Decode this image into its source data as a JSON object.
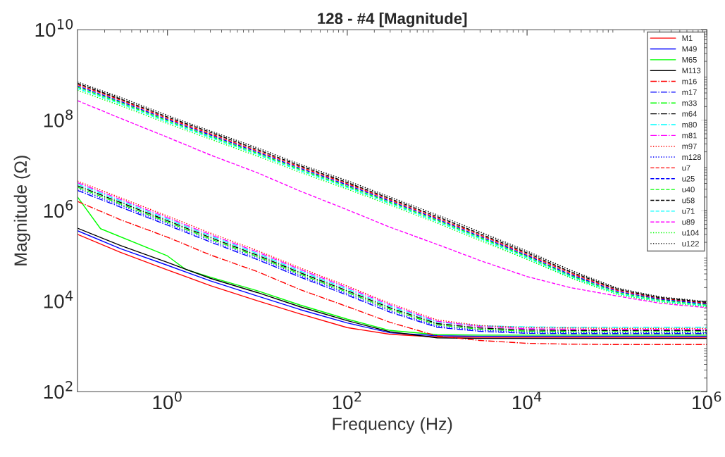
{
  "chart_data": {
    "type": "line",
    "title": "128 - #4 [Magnitude]",
    "xlabel": "Frequency (Hz)",
    "ylabel": "Magnitude (Ω)",
    "log": "xy",
    "grid": false,
    "legend": "top right",
    "xlim": [
      0.1,
      1000000
    ],
    "ylim": [
      100,
      10000000000
    ],
    "xticks": [
      {
        "value": 1,
        "label": "10$^{0}$"
      },
      {
        "value": 100,
        "label": "10$^{2}$"
      },
      {
        "value": 10000,
        "label": "10$^{4}$"
      },
      {
        "value": 1000000,
        "label": "10$^{6}$"
      }
    ],
    "yticks": [
      {
        "value": 100,
        "label": "10$^{2}$"
      },
      {
        "value": 10000,
        "label": "10$^{4}$"
      },
      {
        "value": 1000000,
        "label": "10$^{6}$"
      },
      {
        "value": 100000000,
        "label": "10$^{8}$"
      },
      {
        "value": 10000000000,
        "label": "10$^{10}$"
      }
    ],
    "x": [
      0.1,
      0.3,
      1,
      3,
      10,
      30,
      100,
      300,
      1000,
      3000,
      10000,
      30000,
      100000,
      300000,
      1000000
    ],
    "series": [
      {
        "name": "M1",
        "color": "#ff0000",
        "line_style": "solid",
        "values": [
          300000.0,
          120000.0,
          49000.0,
          22000.0,
          10200.0,
          5200.0,
          2600.0,
          1850.0,
          1620.0,
          1580.0,
          1580.0,
          1580.0,
          1580.0,
          1580.0,
          1580.0
        ]
      },
      {
        "name": "M49",
        "color": "#0000ff",
        "line_style": "solid",
        "values": [
          360000.0,
          145000.0,
          62000.0,
          28000.0,
          13000.0,
          6500.0,
          3300.0,
          2000.0,
          1720.0,
          1680.0,
          1680.0,
          1680.0,
          1680.0,
          1680.0,
          1680.0
        ]
      },
      {
        "name": "M65",
        "color": "#00ff00",
        "line_style": "solid",
        "x": [
          0.1,
          0.18,
          1,
          1.6,
          3,
          10,
          30,
          100,
          300,
          1000,
          3000,
          10000,
          30000,
          100000,
          300000,
          1000000
        ],
        "values": [
          2000000.0,
          400000.0,
          100000.0,
          50000.0,
          34000.0,
          17000.0,
          8200.0,
          4000.0,
          2250.0,
          1820.0,
          1780.0,
          1780.0,
          1780.0,
          1780.0,
          1780.0,
          1780.0
        ]
      },
      {
        "name": "M113",
        "color": "#000000",
        "line_style": "solid",
        "values": [
          410000.0,
          170000.0,
          72000.0,
          32000.0,
          15500.0,
          7500.0,
          3700.0,
          2100.0,
          1550.0,
          1500.0,
          1500.0,
          1500.0,
          1500.0,
          1500.0,
          1500.0
        ]
      },
      {
        "name": "m16",
        "color": "#ff0000",
        "line_style": "dashdot",
        "values": [
          1600000.0,
          630000.0,
          260000.0,
          105000.0,
          45000.0,
          18000.0,
          7600.0,
          3400.0,
          1700.0,
          1350.0,
          1170.0,
          1120.0,
          1100.0,
          1100.0,
          1100.0
        ]
      },
      {
        "name": "m17",
        "color": "#0000ff",
        "line_style": "dashdot",
        "values": [
          2800000.0,
          1200000.0,
          480000.0,
          203000.0,
          83000.0,
          34000.0,
          13600.0,
          5700.0,
          2650.0,
          2150.0,
          1950.0,
          1920.0,
          1920.0,
          1920.0,
          1920.0
        ]
      },
      {
        "name": "m33",
        "color": "#00ff00",
        "line_style": "dashdot",
        "values": [
          3300000.0,
          1410000.0,
          560000.0,
          237000.0,
          97000.0,
          39500.0,
          15800.0,
          6600.0,
          3000.0,
          2400.0,
          2170.0,
          2130.0,
          2130.0,
          2130.0,
          2130.0
        ]
      },
      {
        "name": "m64",
        "color": "#000000",
        "line_style": "dashdot",
        "values": [
          3550000.0,
          1520000.0,
          600000.0,
          255000.0,
          104000.0,
          42500.0,
          17000.0,
          7100.0,
          3200.0,
          2550.0,
          2300.0,
          2250.0,
          2250.0,
          2250.0,
          2250.0
        ]
      },
      {
        "name": "m80",
        "color": "#00ffff",
        "line_style": "dashdot",
        "values": [
          3850000.0,
          1650000.0,
          650000.0,
          275000.0,
          113000.0,
          46000.0,
          18500.0,
          7700.0,
          3450.0,
          2850.0,
          2700.0,
          2650.0,
          2650.0,
          2650.0,
          2650.0
        ]
      },
      {
        "name": "m81",
        "color": "#ff00ff",
        "line_style": "dashdot",
        "values": [
          4150000.0,
          1780000.0,
          700000.0,
          295000.0,
          122000.0,
          50000.0,
          20000.0,
          8300.0,
          3600.0,
          2750.0,
          2450.0,
          2400.0,
          2380.0,
          2380.0,
          2380.0
        ]
      },
      {
        "name": "m97",
        "color": "#ff0000",
        "line_style": "dotted",
        "values": [
          4500000.0,
          1930000.0,
          760000.0,
          320000.0,
          132000.0,
          54000.0,
          21500.0,
          8900.0,
          3850.0,
          2900.0,
          2600.0,
          2550.0,
          2500.0,
          2500.0,
          2500.0
        ]
      },
      {
        "name": "m128",
        "color": "#0000ff",
        "line_style": "dotted",
        "values": [
          3050000.0,
          1310000.0,
          520000.0,
          220000.0,
          90000.0,
          36500.0,
          14700.0,
          6100.0,
          2800.0,
          2280.0,
          2050.0,
          2020.0,
          2020.0,
          2020.0,
          2020.0
        ]
      },
      {
        "name": "u7",
        "color": "#ff0000",
        "line_style": "dashed",
        "values": [
          610000000.0,
          280000000.0,
          110000000.0,
          50000000.0,
          21000000.0,
          9200000.0,
          3950000.0,
          1730000.0,
          690000.0,
          290000.0,
          109000.0,
          42000.0,
          17500.0,
          11500.0,
          9000.0
        ]
      },
      {
        "name": "u25",
        "color": "#0000ff",
        "line_style": "dashed",
        "values": [
          570000000.0,
          260000000.0,
          103000000.0,
          47000000.0,
          19700000.0,
          8600000.0,
          3700000.0,
          1620000.0,
          650000.0,
          270000.0,
          102000.0,
          39000.0,
          16500.0,
          11000.0,
          8600.0
        ]
      },
      {
        "name": "u40",
        "color": "#00ff00",
        "line_style": "dashed",
        "values": [
          535000000.0,
          245000000.0,
          97000000.0,
          44000000.0,
          18500000.0,
          8100000.0,
          3450000.0,
          1520000.0,
          610000.0,
          255000.0,
          96000.0,
          37000.0,
          15500.0,
          10500.0,
          8200.0
        ]
      },
      {
        "name": "u58",
        "color": "#000000",
        "line_style": "dashed",
        "values": [
          650000000.0,
          295000000.0,
          118000000.0,
          54000000.0,
          22500000.0,
          9800000.0,
          4200000.0,
          1850000.0,
          740000.0,
          310000.0,
          117000.0,
          45000.0,
          18500.0,
          12000.0,
          9400.0
        ]
      },
      {
        "name": "u71",
        "color": "#00ffff",
        "line_style": "dashed",
        "values": [
          500000000.0,
          230000000.0,
          91000000.0,
          41500000.0,
          17400000.0,
          7600000.0,
          3250000.0,
          1430000.0,
          570000.0,
          240000.0,
          90000.0,
          35000.0,
          14700.0,
          10000.0,
          7900.0
        ]
      },
      {
        "name": "u89",
        "color": "#ff00ff",
        "line_style": "dashed",
        "values": [
          270000000.0,
          110000000.0,
          42000000.0,
          17000000.0,
          6900000.0,
          2700000.0,
          1050000.0,
          430000.0,
          180000.0,
          79000.0,
          35000.0,
          20000.0,
          13000.0,
          9000.0,
          7200.0
        ]
      },
      {
        "name": "u104",
        "color": "#00ff00",
        "line_style": "dotted",
        "values": [
          460000000.0,
          210000000.0,
          84000000.0,
          38000000.0,
          16000000.0,
          7000000.0,
          3000000.0,
          1320000.0,
          530000.0,
          220000.0,
          84000.0,
          33000.0,
          14000.0,
          9600.0,
          7600.0
        ]
      },
      {
        "name": "u122",
        "color": "#000000",
        "line_style": "dotted",
        "values": [
          700000000.0,
          320000000.0,
          128000000.0,
          58000000.0,
          24500000.0,
          10600000.0,
          4600000.0,
          2000000.0,
          810000.0,
          340000.0,
          128000.0,
          49000.0,
          19500.0,
          12500.0,
          9800.0
        ]
      }
    ]
  }
}
